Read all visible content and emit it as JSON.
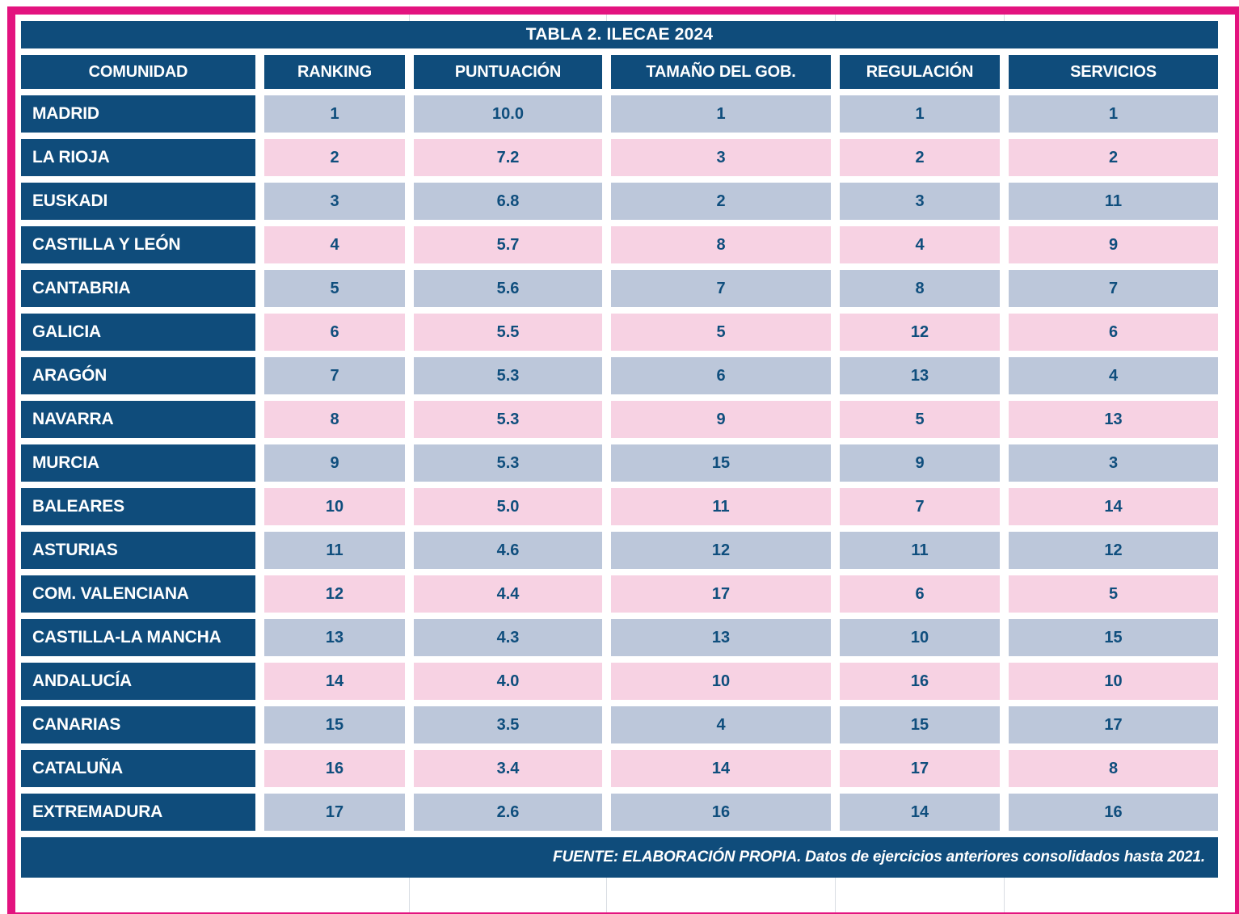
{
  "chart_data": {
    "type": "table",
    "title": "TABLA 2. ILECAE 2024",
    "columns": [
      "COMUNIDAD",
      "RANKING",
      "PUNTUACIÓN",
      "TAMAÑO DEL GOB.",
      "REGULACIÓN",
      "SERVICIOS"
    ],
    "rows": [
      [
        "MADRID",
        "1",
        "10.0",
        "1",
        "1",
        "1"
      ],
      [
        "LA RIOJA",
        "2",
        "7.2",
        "3",
        "2",
        "2"
      ],
      [
        "EUSKADI",
        "3",
        "6.8",
        "2",
        "3",
        "11"
      ],
      [
        "CASTILLA Y LEÓN",
        "4",
        "5.7",
        "8",
        "4",
        "9"
      ],
      [
        "CANTABRIA",
        "5",
        "5.6",
        "7",
        "8",
        "7"
      ],
      [
        "GALICIA",
        "6",
        "5.5",
        "5",
        "12",
        "6"
      ],
      [
        "ARAGÓN",
        "7",
        "5.3",
        "6",
        "13",
        "4"
      ],
      [
        "NAVARRA",
        "8",
        "5.3",
        "9",
        "5",
        "13"
      ],
      [
        "MURCIA",
        "9",
        "5.3",
        "15",
        "9",
        "3"
      ],
      [
        "BALEARES",
        "10",
        "5.0",
        "11",
        "7",
        "14"
      ],
      [
        "ASTURIAS",
        "11",
        "4.6",
        "12",
        "11",
        "12"
      ],
      [
        "COM. VALENCIANA",
        "12",
        "4.4",
        "17",
        "6",
        "5"
      ],
      [
        "CASTILLA-LA MANCHA",
        "13",
        "4.3",
        "13",
        "10",
        "15"
      ],
      [
        "ANDALUCÍA",
        "14",
        "4.0",
        "10",
        "16",
        "10"
      ],
      [
        "CANARIAS",
        "15",
        "3.5",
        "4",
        "15",
        "17"
      ],
      [
        "CATALUÑA",
        "16",
        "3.4",
        "14",
        "17",
        "8"
      ],
      [
        "EXTREMADURA",
        "17",
        "2.6",
        "16",
        "14",
        "16"
      ]
    ],
    "footnote": "FUENTE: ELABORACIÓN PROPIA. Datos de ejercicios anteriores consolidados hasta 2021.",
    "layout_hints": {
      "row_striping": [
        "blue",
        "pink"
      ],
      "first_column_style": "navy-header-cells",
      "grid": "off"
    }
  },
  "colors": {
    "navy": "#0F4C7B",
    "frame_magenta": "#E3137F",
    "row_blue": "#BCC7DA",
    "row_pink": "#F7D2E3",
    "value_text": "#0F4E7D",
    "header_text": "#FFFFFF"
  }
}
